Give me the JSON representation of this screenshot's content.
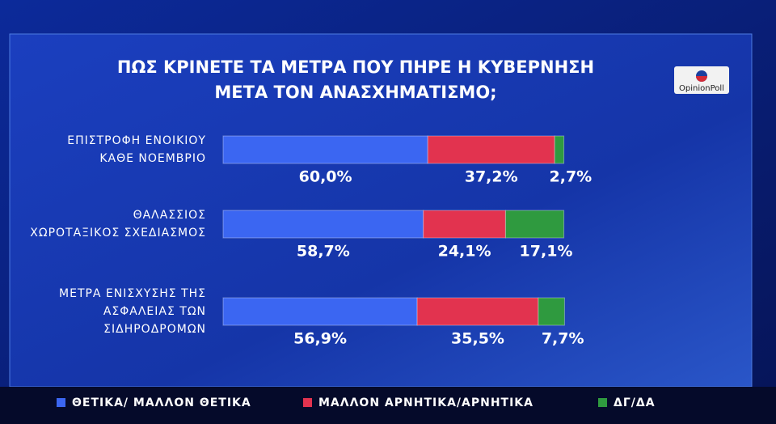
{
  "chart_data": {
    "type": "stacked-bar",
    "title": [
      "ΠΩΣ ΚΡΙΝΕΤΕ ΤΑ ΜΕΤΡΑ ΠΟΥ ΠΗΡΕ Η ΚΥΒΕΡΝΗΣΗ",
      "ΜΕΤΑ ΤΟΝ ΑΝΑΣΧΗΜΑΤΙΣΜΟ;"
    ],
    "source_logo": "OpinionPoll",
    "categories": [
      [
        "ΕΠΙΣΤΡΟΦΗ ΕΝΟΙΚΙΟΥ",
        "ΚΑΘΕ ΝΟΕΜΒΡΙΟ"
      ],
      [
        "ΘΑΛΑΣΣΙΟΣ",
        "ΧΩΡΟΤΑΞΙΚΟΣ ΣΧΕΔΙΑΣΜΟΣ"
      ],
      [
        "ΜΕΤΡΑ ΕΝΙΣΧΥΣΗΣ ΤΗΣ",
        "ΑΣΦΑΛΕΙΑΣ ΤΩΝ",
        "ΣΙΔΗΡΟΔΡΟΜΩΝ"
      ]
    ],
    "series": [
      {
        "name": "ΘΕΤΙΚΑ/ ΜΑΛΛΟΝ ΘΕΤΙΚΑ",
        "color": "#3b66f2",
        "values": [
          60.0,
          58.7,
          56.9
        ],
        "value_labels": [
          "60,0%",
          "58,7%",
          "56,9%"
        ]
      },
      {
        "name": "ΜΑΛΛΟΝ ΑΡΝΗΤΙΚΑ/ΑΡΝΗΤΙΚΑ",
        "color": "#e2334f",
        "values": [
          37.2,
          24.1,
          35.5
        ],
        "value_labels": [
          "37,2%",
          "24,1%",
          "35,5%"
        ]
      },
      {
        "name": "ΔΓ/ΔΑ",
        "color": "#2f9a3f",
        "values": [
          2.7,
          17.1,
          7.7
        ],
        "value_labels": [
          "2,7%",
          "17,1%",
          "7,7%"
        ]
      }
    ]
  }
}
